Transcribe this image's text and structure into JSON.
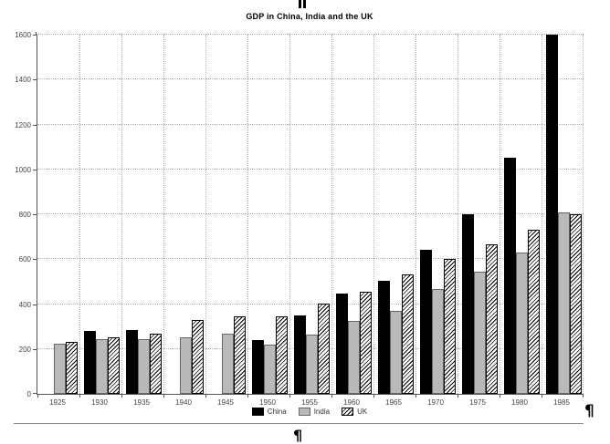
{
  "page": {
    "pilcrow": "¶"
  },
  "chart_data": {
    "type": "bar",
    "title": "GDP in China, India and the UK",
    "categories": [
      "1925",
      "1930",
      "1935",
      "1940",
      "1945",
      "1950",
      "1955",
      "1960",
      "1965",
      "1970",
      "1975",
      "1980",
      "1985"
    ],
    "series": [
      {
        "name": "China",
        "style": "china",
        "fill": "#000000",
        "pattern": "solid",
        "values": [
          null,
          280,
          285,
          null,
          null,
          240,
          350,
          445,
          505,
          640,
          800,
          1050,
          1600
        ]
      },
      {
        "name": "India",
        "style": "india",
        "fill": "#b9b9b9",
        "pattern": "solid",
        "values": [
          225,
          245,
          245,
          250,
          270,
          220,
          265,
          325,
          370,
          465,
          545,
          630,
          810
        ]
      },
      {
        "name": "UK",
        "style": "uk",
        "fill": "#ffffff",
        "pattern": "diagonal-hatch",
        "values": [
          230,
          250,
          270,
          330,
          345,
          345,
          400,
          455,
          530,
          600,
          665,
          730,
          800
        ]
      }
    ],
    "xlabel": "",
    "ylabel": "",
    "ylim": [
      0,
      1600
    ],
    "ytick_interval": 200,
    "yticks": [
      "0",
      "200",
      "400",
      "600",
      "800",
      "1000",
      "1200",
      "1400",
      "1600"
    ],
    "grid": "dotted horizontal and vertical",
    "legend_position": "bottom"
  }
}
